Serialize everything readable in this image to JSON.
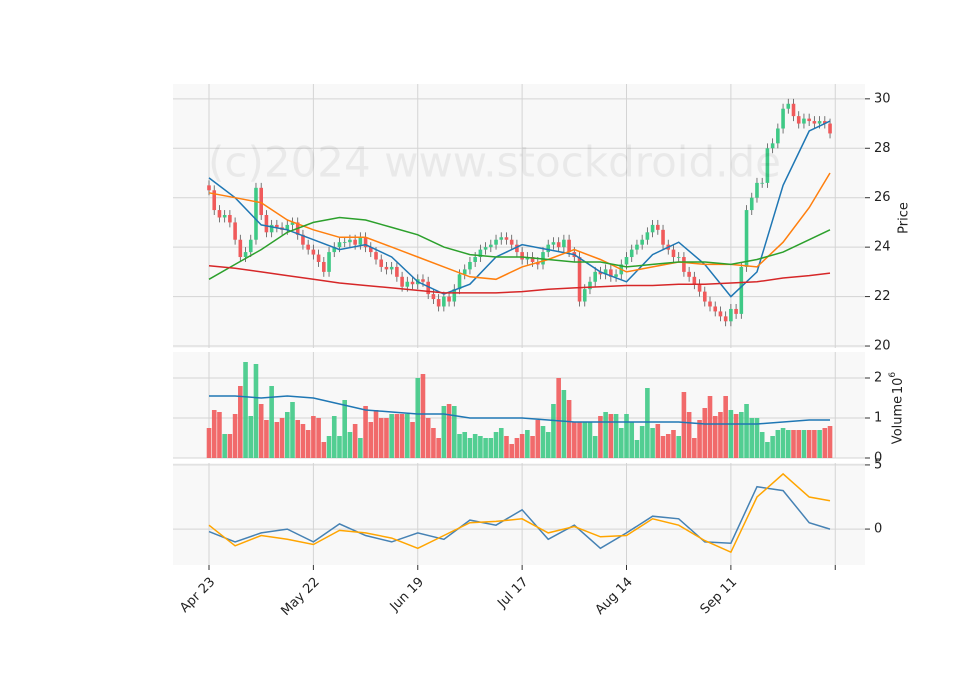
{
  "chart_data": {
    "type": "candlestick",
    "watermark": "(c)2024 www.stockdroid.de",
    "xlim": [
      -6.9,
      125.7
    ],
    "xticks": [
      {
        "value": 0,
        "label": "Apr 23"
      },
      {
        "value": 20,
        "label": "May 22"
      },
      {
        "value": 40,
        "label": "Jun 19"
      },
      {
        "value": 60,
        "label": "Jul 17"
      },
      {
        "value": 80,
        "label": "Aug 14"
      },
      {
        "value": 100,
        "label": "Sep 11"
      },
      120
    ],
    "grid": true,
    "up_color": "#3fc986",
    "down_color": "#f05a5b",
    "line_x": [
      0,
      5,
      10,
      15,
      20,
      25,
      30,
      35,
      40,
      45,
      50,
      55,
      60,
      65,
      70,
      75,
      80,
      85,
      90,
      95,
      100,
      105,
      110,
      115,
      119
    ],
    "price": {
      "ylabel": "Price",
      "ylim": [
        19.92,
        30.6
      ],
      "yticks": [
        20,
        22,
        24,
        26,
        28,
        30
      ],
      "open": [
        26.5,
        26.3,
        25.5,
        25.2,
        25.3,
        25.0,
        24.3,
        23.6,
        23.8,
        24.3,
        26.4,
        25.3,
        24.6,
        24.9,
        24.8,
        24.7,
        24.9,
        25.0,
        24.5,
        24.1,
        23.9,
        23.7,
        23.4,
        23.0,
        23.8,
        24.0,
        24.2,
        24.2,
        24.3,
        24.1,
        24.4,
        24.0,
        23.8,
        23.5,
        23.2,
        23.1,
        23.2,
        22.8,
        22.4,
        22.6,
        22.5,
        22.7,
        22.6,
        22.1,
        21.9,
        21.6,
        22.0,
        21.8,
        22.3,
        22.9,
        23.1,
        23.4,
        23.6,
        23.9,
        24.0,
        24.1,
        24.3,
        24.4,
        24.3,
        24.1,
        23.8,
        23.5,
        23.6,
        23.4,
        23.3,
        23.8,
        24.1,
        24.2,
        24.0,
        24.3,
        23.8,
        23.6,
        21.8,
        22.3,
        22.6,
        23.0,
        22.9,
        23.1,
        22.8,
        22.9,
        23.3,
        23.6,
        23.9,
        24.1,
        24.3,
        24.6,
        24.9,
        24.7,
        24.1,
        23.9,
        23.6,
        23.6,
        23.0,
        22.8,
        22.5,
        22.2,
        21.8,
        21.6,
        21.4,
        21.2,
        21.0,
        21.5,
        21.3,
        23.2,
        25.5,
        26.0,
        26.6,
        26.6,
        28.0,
        28.2,
        28.8,
        29.6,
        29.8,
        29.3,
        29.0,
        29.2,
        29.1,
        29.0,
        29.1,
        29.0
      ],
      "high": [
        26.7,
        26.5,
        25.7,
        25.5,
        25.5,
        25.2,
        24.5,
        24.0,
        24.5,
        26.6,
        26.6,
        25.5,
        25.1,
        25.1,
        25.0,
        25.1,
        25.2,
        25.2,
        24.7,
        24.3,
        24.1,
        23.9,
        23.6,
        24.0,
        24.2,
        24.4,
        24.4,
        24.5,
        24.5,
        24.6,
        24.6,
        24.2,
        24.0,
        23.7,
        23.4,
        23.4,
        23.4,
        23.0,
        22.8,
        22.8,
        22.9,
        22.9,
        22.8,
        22.3,
        22.1,
        22.2,
        22.2,
        22.5,
        23.1,
        23.3,
        23.6,
        23.8,
        24.1,
        24.2,
        24.3,
        24.5,
        24.6,
        24.6,
        24.5,
        24.3,
        24.0,
        23.8,
        23.8,
        23.6,
        24.0,
        24.3,
        24.4,
        24.4,
        24.5,
        24.5,
        24.0,
        23.8,
        22.5,
        22.8,
        23.2,
        23.2,
        23.3,
        23.3,
        23.1,
        23.5,
        23.8,
        24.1,
        24.3,
        24.5,
        24.8,
        25.1,
        25.1,
        24.9,
        24.3,
        24.1,
        23.8,
        23.8,
        23.2,
        23.0,
        22.7,
        22.4,
        22.0,
        21.8,
        21.6,
        21.4,
        21.7,
        21.7,
        23.4,
        25.7,
        26.2,
        26.8,
        26.8,
        28.2,
        28.4,
        29.0,
        29.8,
        30.0,
        30.0,
        29.5,
        29.4,
        29.4,
        29.3,
        29.3,
        29.3,
        29.2
      ],
      "low": [
        26.1,
        25.3,
        25.0,
        25.0,
        24.8,
        24.1,
        23.4,
        23.4,
        23.6,
        24.1,
        25.1,
        24.4,
        24.4,
        24.6,
        24.5,
        24.5,
        24.7,
        24.3,
        23.9,
        23.7,
        23.5,
        23.2,
        22.8,
        22.8,
        23.6,
        23.8,
        24.0,
        24.0,
        23.9,
        23.9,
        23.8,
        23.6,
        23.3,
        23.0,
        22.9,
        22.9,
        22.6,
        22.2,
        22.2,
        22.3,
        22.3,
        22.4,
        21.9,
        21.7,
        21.4,
        21.4,
        21.6,
        21.6,
        22.1,
        22.7,
        22.9,
        23.2,
        23.4,
        23.7,
        23.8,
        23.9,
        24.1,
        24.1,
        23.9,
        23.6,
        23.3,
        23.3,
        23.2,
        23.1,
        23.1,
        23.6,
        23.9,
        23.8,
        23.8,
        23.6,
        23.4,
        21.6,
        21.6,
        22.1,
        22.4,
        22.7,
        22.7,
        22.6,
        22.6,
        22.7,
        23.1,
        23.4,
        23.7,
        23.9,
        24.1,
        24.4,
        24.5,
        23.9,
        23.7,
        23.4,
        23.4,
        22.8,
        22.6,
        22.3,
        22.0,
        21.6,
        21.4,
        21.2,
        21.0,
        20.8,
        20.8,
        21.1,
        21.1,
        23.0,
        25.3,
        25.8,
        26.4,
        26.4,
        27.8,
        28.0,
        28.6,
        29.4,
        29.1,
        28.8,
        28.8,
        28.9,
        28.8,
        28.8,
        28.8,
        28.4
      ],
      "close": [
        26.3,
        25.5,
        25.2,
        25.3,
        25.0,
        24.3,
        23.6,
        23.8,
        24.3,
        26.4,
        25.3,
        24.6,
        24.9,
        24.8,
        24.7,
        24.9,
        25.0,
        24.5,
        24.1,
        23.9,
        23.7,
        23.4,
        23.0,
        23.8,
        24.0,
        24.2,
        24.2,
        24.3,
        24.1,
        24.4,
        24.0,
        23.8,
        23.5,
        23.2,
        23.1,
        23.2,
        22.8,
        22.4,
        22.6,
        22.5,
        22.7,
        22.6,
        22.1,
        21.9,
        21.6,
        22.0,
        21.8,
        22.3,
        22.9,
        23.1,
        23.4,
        23.6,
        23.9,
        24.0,
        24.1,
        24.3,
        24.4,
        24.3,
        24.1,
        23.8,
        23.5,
        23.6,
        23.4,
        23.3,
        23.8,
        24.1,
        24.2,
        24.0,
        24.3,
        23.8,
        23.6,
        21.8,
        22.3,
        22.6,
        23.0,
        22.9,
        23.1,
        22.8,
        22.9,
        23.3,
        23.6,
        23.9,
        24.1,
        24.3,
        24.6,
        24.9,
        24.7,
        24.1,
        23.9,
        23.6,
        23.6,
        23.0,
        22.8,
        22.5,
        22.2,
        21.8,
        21.6,
        21.4,
        21.2,
        21.0,
        21.5,
        21.3,
        23.2,
        25.5,
        26.0,
        26.6,
        26.6,
        28.0,
        28.2,
        28.8,
        29.6,
        29.8,
        29.3,
        29.0,
        29.2,
        29.1,
        29.0,
        29.1,
        29.0,
        28.6
      ],
      "series": [
        {
          "color": "#1f77b4",
          "values": [
            26.8,
            26.0,
            24.9,
            24.7,
            24.3,
            23.9,
            24.1,
            23.6,
            22.6,
            22.1,
            22.5,
            23.6,
            24.1,
            23.9,
            23.7,
            23.0,
            22.6,
            23.7,
            24.2,
            23.3,
            22.0,
            23.0,
            26.5,
            28.7,
            29.1
          ]
        },
        {
          "color": "#ff7f0e",
          "values": [
            26.2,
            26.0,
            25.8,
            25.1,
            24.7,
            24.4,
            24.4,
            24.0,
            23.6,
            23.2,
            22.8,
            22.7,
            23.2,
            23.5,
            23.9,
            23.5,
            23.0,
            23.2,
            23.4,
            23.3,
            23.3,
            23.2,
            24.2,
            25.6,
            27.0
          ]
        },
        {
          "color": "#2ca02c",
          "values": [
            22.7,
            23.3,
            23.9,
            24.6,
            25.0,
            25.2,
            25.1,
            24.8,
            24.5,
            24.0,
            23.7,
            23.6,
            23.6,
            23.5,
            23.4,
            23.4,
            23.2,
            23.3,
            23.4,
            23.4,
            23.3,
            23.5,
            23.8,
            24.3,
            24.7
          ]
        },
        {
          "color": "#d62728",
          "values": [
            23.25,
            23.15,
            23.0,
            22.85,
            22.7,
            22.55,
            22.45,
            22.35,
            22.25,
            22.15,
            22.15,
            22.15,
            22.2,
            22.3,
            22.35,
            22.4,
            22.45,
            22.45,
            22.5,
            22.5,
            22.55,
            22.6,
            22.75,
            22.85,
            22.95
          ]
        }
      ]
    },
    "volume": {
      "ylabel": "Volume",
      "scale_label": {
        "base": "10",
        "exponent": "6"
      },
      "ylim": [
        0,
        2.65
      ],
      "yticks": [
        0,
        1,
        2
      ],
      "values": [
        0.75,
        1.2,
        1.15,
        0.6,
        0.6,
        1.1,
        1.8,
        2.4,
        1.05,
        2.35,
        1.35,
        0.95,
        1.8,
        0.9,
        1.0,
        1.15,
        1.4,
        0.95,
        0.85,
        0.7,
        1.05,
        1.0,
        0.4,
        0.55,
        1.05,
        0.55,
        1.45,
        0.65,
        0.85,
        0.5,
        1.3,
        0.9,
        1.2,
        1.0,
        1.0,
        1.1,
        1.1,
        1.1,
        1.1,
        0.9,
        2.0,
        2.1,
        1.0,
        0.75,
        0.5,
        1.3,
        1.35,
        1.3,
        0.6,
        0.65,
        0.5,
        0.6,
        0.55,
        0.5,
        0.5,
        0.65,
        0.75,
        0.55,
        0.35,
        0.5,
        0.6,
        0.7,
        0.55,
        0.95,
        0.8,
        0.65,
        1.35,
        2.0,
        1.7,
        1.45,
        0.9,
        0.9,
        0.9,
        0.9,
        0.55,
        1.05,
        1.15,
        1.1,
        1.1,
        0.75,
        1.1,
        0.9,
        0.45,
        0.8,
        1.75,
        0.75,
        0.85,
        0.55,
        0.6,
        0.7,
        0.55,
        1.65,
        1.15,
        0.5,
        0.95,
        1.25,
        1.55,
        1.05,
        1.15,
        1.55,
        1.2,
        1.1,
        1.15,
        1.35,
        1.0,
        1.0,
        0.65,
        0.4,
        0.55,
        0.7,
        0.75,
        0.7,
        0.7,
        0.7,
        0.7,
        0.7,
        0.7,
        0.7,
        0.75,
        0.8
      ],
      "series": [
        {
          "color": "#1f77b4",
          "values": [
            1.55,
            1.55,
            1.5,
            1.55,
            1.5,
            1.35,
            1.2,
            1.15,
            1.1,
            1.1,
            1.0,
            1.0,
            1.0,
            0.95,
            0.9,
            0.9,
            0.9,
            0.9,
            0.9,
            0.85,
            0.85,
            0.85,
            0.9,
            0.95,
            0.95
          ]
        }
      ]
    },
    "indicator": {
      "ylim": [
        -2.8,
        5.15
      ],
      "yticks": [
        0,
        5
      ],
      "series": [
        {
          "color": "#4682b4",
          "values": [
            -0.2,
            -1.0,
            -0.3,
            0.0,
            -1.0,
            0.4,
            -0.5,
            -1.0,
            -0.3,
            -0.8,
            0.7,
            0.3,
            1.5,
            -0.8,
            0.3,
            -1.5,
            -0.3,
            1.0,
            0.8,
            -1.0,
            -1.1,
            3.3,
            3.0,
            0.5,
            0.0
          ]
        },
        {
          "color": "#ffa500",
          "values": [
            0.3,
            -1.3,
            -0.5,
            -0.8,
            -1.2,
            -0.1,
            -0.3,
            -0.7,
            -1.5,
            -0.5,
            0.5,
            0.6,
            0.8,
            -0.3,
            0.2,
            -0.6,
            -0.5,
            0.8,
            0.3,
            -0.9,
            -1.8,
            2.5,
            4.3,
            2.5,
            2.2
          ]
        }
      ]
    }
  }
}
